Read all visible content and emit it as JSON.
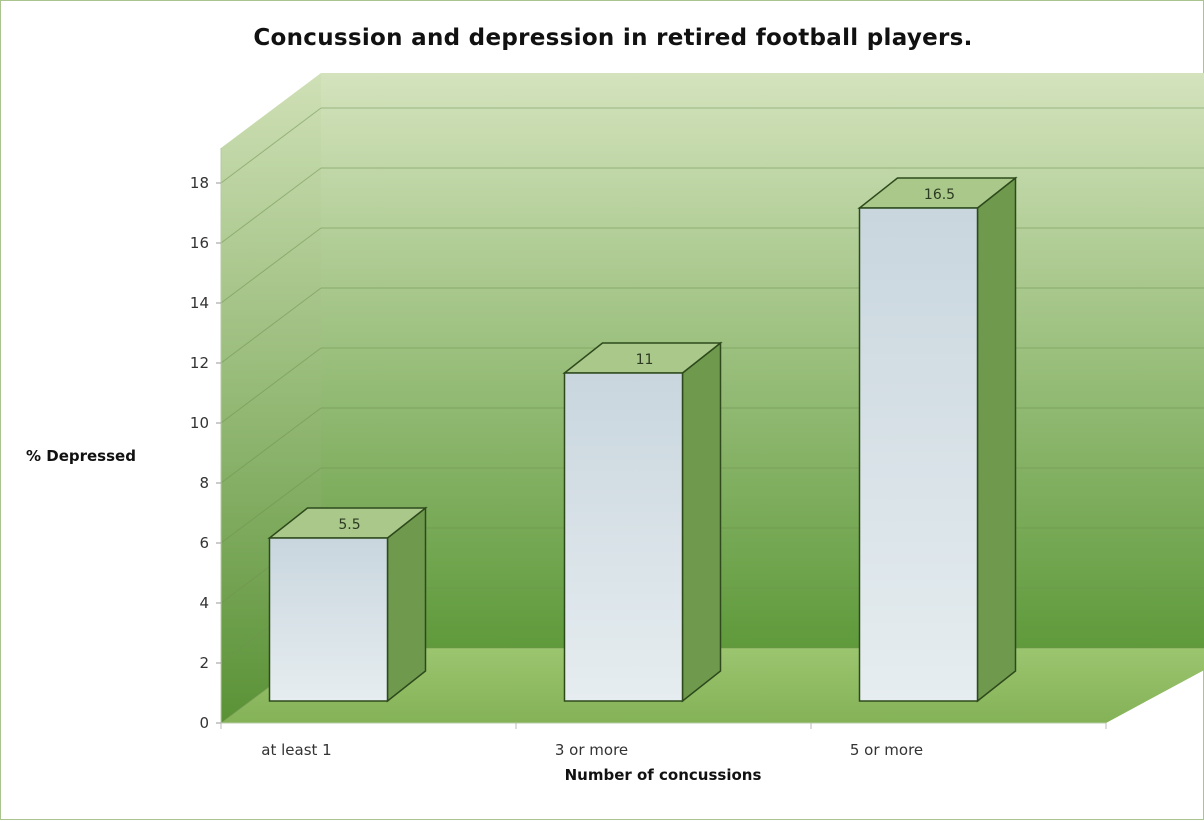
{
  "chart_data": {
    "type": "bar",
    "title": "Concussion and depression in retired football players.",
    "xlabel": "Number of concussions",
    "ylabel": "% Depressed",
    "categories": [
      "at least 1",
      "3 or more",
      "5 or more"
    ],
    "values": [
      5.5,
      11,
      16.5
    ],
    "value_labels": [
      "5.5",
      "11",
      "16.5"
    ],
    "ylim": [
      0,
      18
    ],
    "yticks": [
      0,
      2,
      4,
      6,
      8,
      10,
      12,
      14,
      16,
      18
    ],
    "grid": true,
    "legend": "none",
    "style": "3d",
    "colors": {
      "bar_front_top": "#c9d6de",
      "bar_front_bottom": "#e6edf0",
      "bar_side": "#6f9a4e",
      "bar_top": "#a9c88a",
      "bar_edge": "#2e4a1c",
      "wall_top": "#d4e3bd",
      "wall_bottom": "#5f9a3b",
      "floor": "#8fbc62",
      "gridline": "#6f9450"
    }
  }
}
